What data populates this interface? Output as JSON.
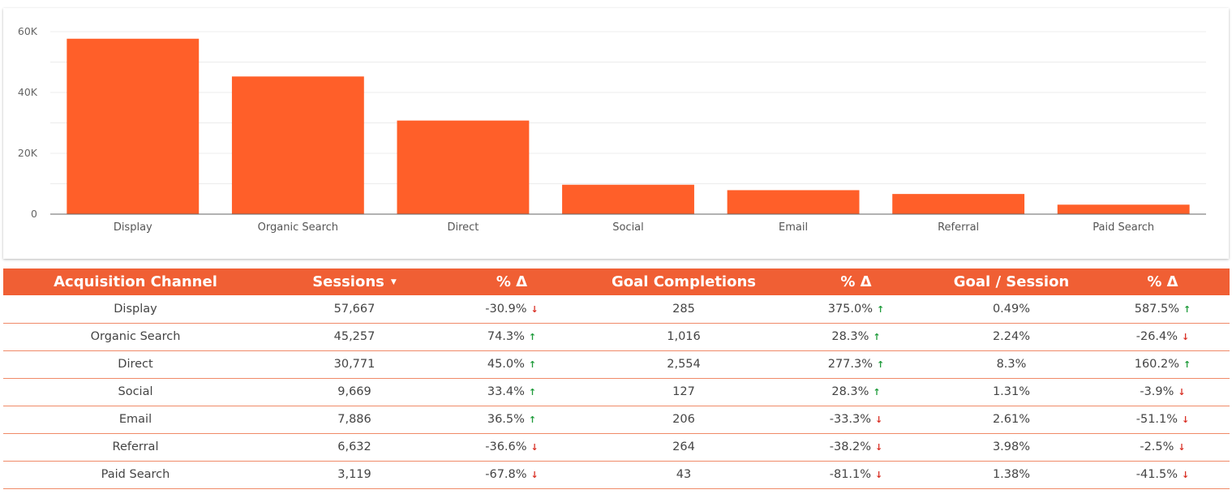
{
  "chart_data": {
    "type": "bar",
    "categories": [
      "Display",
      "Organic Search",
      "Direct",
      "Social",
      "Email",
      "Referral",
      "Paid Search"
    ],
    "values": [
      57667,
      45257,
      30771,
      9669,
      7886,
      6632,
      3119
    ],
    "title": "",
    "xlabel": "",
    "ylabel": "",
    "ylim": [
      0,
      60000
    ],
    "yticks": [
      0,
      20000,
      40000,
      60000
    ],
    "ytick_labels": [
      "0",
      "20K",
      "40K",
      "60K"
    ],
    "grid": true,
    "legend": "none",
    "bar_color": "#ff5f29"
  },
  "table": {
    "header_color": "#f05f34",
    "headers": {
      "channel": "Acquisition Channel",
      "sessions": "Sessions",
      "sessions_delta": "% Δ",
      "goals": "Goal Completions",
      "goals_delta": "% Δ",
      "goal_session": "Goal / Session",
      "goal_session_delta": "% Δ"
    },
    "rows": [
      {
        "channel": "Display",
        "sessions": "57,667",
        "sessions_delta": "-30.9%",
        "sessions_dir": "down",
        "goals": "285",
        "goals_delta": "375.0%",
        "goals_dir": "up",
        "goal_session": "0.49%",
        "goal_session_delta": "587.5%",
        "goal_session_dir": "up"
      },
      {
        "channel": "Organic Search",
        "sessions": "45,257",
        "sessions_delta": "74.3%",
        "sessions_dir": "up",
        "goals": "1,016",
        "goals_delta": "28.3%",
        "goals_dir": "up",
        "goal_session": "2.24%",
        "goal_session_delta": "-26.4%",
        "goal_session_dir": "down"
      },
      {
        "channel": "Direct",
        "sessions": "30,771",
        "sessions_delta": "45.0%",
        "sessions_dir": "up",
        "goals": "2,554",
        "goals_delta": "277.3%",
        "goals_dir": "up",
        "goal_session": "8.3%",
        "goal_session_delta": "160.2%",
        "goal_session_dir": "up"
      },
      {
        "channel": "Social",
        "sessions": "9,669",
        "sessions_delta": "33.4%",
        "sessions_dir": "up",
        "goals": "127",
        "goals_delta": "28.3%",
        "goals_dir": "up",
        "goal_session": "1.31%",
        "goal_session_delta": "-3.9%",
        "goal_session_dir": "down"
      },
      {
        "channel": "Email",
        "sessions": "7,886",
        "sessions_delta": "36.5%",
        "sessions_dir": "up",
        "goals": "206",
        "goals_delta": "-33.3%",
        "goals_dir": "down",
        "goal_session": "2.61%",
        "goal_session_delta": "-51.1%",
        "goal_session_dir": "down"
      },
      {
        "channel": "Referral",
        "sessions": "6,632",
        "sessions_delta": "-36.6%",
        "sessions_dir": "down",
        "goals": "264",
        "goals_delta": "-38.2%",
        "goals_dir": "down",
        "goal_session": "3.98%",
        "goal_session_delta": "-2.5%",
        "goal_session_dir": "down"
      },
      {
        "channel": "Paid Search",
        "sessions": "3,119",
        "sessions_delta": "-67.8%",
        "sessions_dir": "down",
        "goals": "43",
        "goals_delta": "-81.1%",
        "goals_dir": "down",
        "goal_session": "1.38%",
        "goal_session_delta": "-41.5%",
        "goal_session_dir": "down"
      }
    ]
  }
}
